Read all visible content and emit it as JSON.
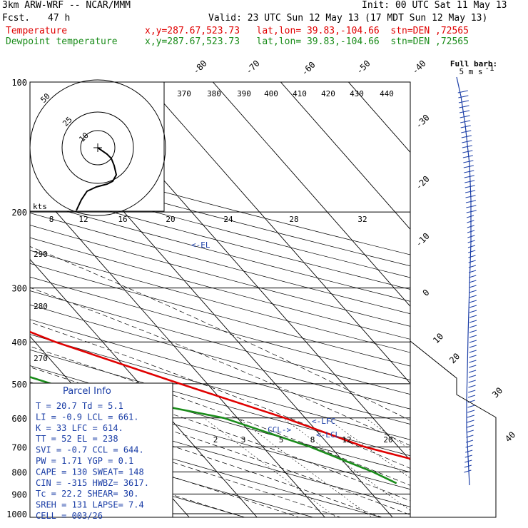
{
  "header": {
    "model": "3km ARW-WRF -- NCAR/MMM",
    "init": "Init: 00 UTC Sat 11 May 13",
    "fcst_label": "Fcst.",
    "fcst_hours": "47 h",
    "valid": "Valid: 23 UTC Sun 12 May 13 (17 MDT Sun 12 May 13)",
    "temp_label": "Temperature",
    "temp_info": "x,y=287.67,523.73   lat,lon= 39.83,-104.66  stn=DEN ,72565",
    "dew_label": "Dewpoint temperature",
    "dew_info": "x,y=287.67,523.73   lat,lon= 39.83,-104.66  stn=DEN ,72565"
  },
  "barb_title": "Full barb:",
  "barb_units": "5 m s",
  "barb_units_exp": "-1",
  "colors": {
    "temperature": "#e00000",
    "dewpoint": "#1a8c1a",
    "parcel_info": "#1a3da6",
    "isotherm": "#000000"
  },
  "chart_data": {
    "type": "skew-t",
    "title": "3km ARW-WRF skew-T sounding DEN",
    "pressure_levels": [
      100,
      200,
      300,
      400,
      500,
      600,
      700,
      800,
      900,
      1000
    ],
    "isotherm_labels": [
      -80,
      -70,
      -60,
      -50,
      -40,
      -30,
      -20,
      -10,
      0,
      10,
      20,
      30,
      40
    ],
    "theta_labels": [
      370,
      380,
      390,
      400,
      410,
      420,
      430,
      440
    ],
    "theta_labels_left": [
      290,
      280,
      270
    ],
    "mixing_ratio_labels": [
      2,
      3,
      5,
      8,
      12,
      20
    ],
    "hodograph": {
      "rings": [
        50,
        25,
        10
      ],
      "ring_labels": [
        "50",
        "25",
        "10"
      ],
      "axis_label": "kts",
      "axis_ticks": [
        "8",
        "12",
        "16",
        "20",
        "24",
        "28",
        "32"
      ]
    },
    "series": [
      {
        "name": "Temperature",
        "points": [
          [
            100,
            -60
          ],
          [
            150,
            -50
          ],
          [
            200,
            -55
          ],
          [
            250,
            -47
          ],
          [
            300,
            -40
          ],
          [
            400,
            -27
          ],
          [
            500,
            -14
          ],
          [
            600,
            -3
          ],
          [
            700,
            5
          ],
          [
            800,
            16
          ],
          [
            850,
            21
          ]
        ]
      },
      {
        "name": "Dewpoint temperature",
        "points": [
          [
            100,
            -86
          ],
          [
            150,
            -80
          ],
          [
            200,
            -78
          ],
          [
            250,
            -68
          ],
          [
            300,
            -66
          ],
          [
            400,
            -47
          ],
          [
            500,
            -33
          ],
          [
            600,
            -12
          ],
          [
            700,
            -3
          ],
          [
            800,
            3
          ],
          [
            850,
            5
          ]
        ]
      }
    ],
    "annotations": [
      "<-EL",
      "<-LFC",
      "<-LCL",
      "CCL->"
    ],
    "parcel_info": {
      "title": "Parcel Info",
      "rows": [
        "T  =    20.7  Td =   5.1",
        "LI =    -0.9  LCL =  661.",
        "K  =      33  LFC =  614.",
        "TT =      52  EL  =   238",
        "SVI =   -0.7  CCL =  644.",
        "PW  =   1.71  YGP =   0.1",
        "CAPE =   130  SWEAT=  148",
        "CIN  =  -315  HWBZ= 3617.",
        "Tc  =   22.2  SHEAR=  30.",
        "SREH =   131  LAPSE=  7.4",
        "CELL = 003/26"
      ]
    }
  }
}
